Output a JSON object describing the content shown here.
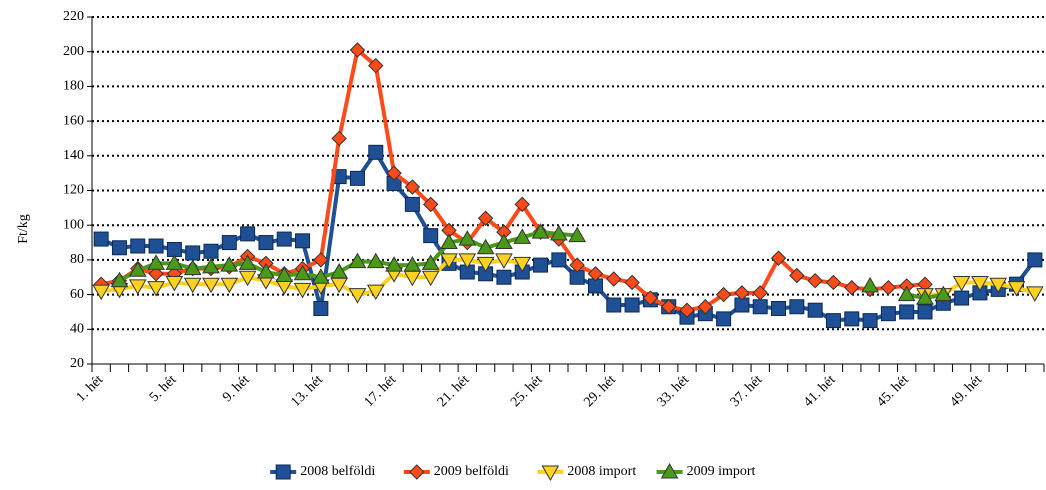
{
  "chart_data": {
    "type": "line",
    "ylabel": "Ft/kg",
    "categories": [
      "1. hét",
      null,
      null,
      null,
      "5. hét",
      null,
      null,
      null,
      "9. hét",
      null,
      null,
      null,
      "13. hét",
      null,
      null,
      null,
      "17. hét",
      null,
      null,
      null,
      "21. hét",
      null,
      null,
      null,
      "25. hét",
      null,
      null,
      null,
      "29. hét",
      null,
      null,
      null,
      "33. hét",
      null,
      null,
      null,
      "37. hét",
      null,
      null,
      null,
      "41. hét",
      null,
      null,
      null,
      "45. hét",
      null,
      null,
      null,
      "49. hét",
      null,
      null,
      null
    ],
    "ylim": [
      20,
      220
    ],
    "yticks": [
      20,
      40,
      60,
      80,
      100,
      120,
      140,
      160,
      180,
      200,
      220
    ],
    "grid": true,
    "legend": "bottom",
    "series": [
      {
        "name": "2008 belföldi",
        "color": "#1f4f94",
        "marker": "square",
        "values": [
          92,
          87,
          88,
          88,
          86,
          84,
          85,
          90,
          95,
          90,
          92,
          91,
          52,
          128,
          127,
          142,
          124,
          112,
          94,
          78,
          73,
          72,
          70,
          73,
          77,
          80,
          70,
          65,
          54,
          54,
          57,
          53,
          47,
          49,
          46,
          54,
          53,
          52,
          53,
          51,
          45,
          46,
          45,
          49,
          50,
          50,
          55,
          58,
          61,
          63,
          66,
          80
        ]
      },
      {
        "name": "2009 belföldi",
        "color": "#ff4a1a",
        "marker": "diamond",
        "values": [
          66,
          68,
          75,
          72,
          72,
          75,
          75,
          76,
          82,
          78,
          72,
          75,
          80,
          150,
          201,
          192,
          130,
          122,
          112,
          97,
          90,
          104,
          96,
          112,
          96,
          92,
          77,
          72,
          69,
          67,
          58,
          53,
          51,
          53,
          60,
          61,
          61,
          81,
          71,
          68,
          67,
          64,
          63,
          64,
          65,
          66,
          null,
          null,
          null,
          null,
          null,
          null
        ]
      },
      {
        "name": "2008 import",
        "color": "#ffd21f",
        "marker": "triangle-down",
        "values": [
          62,
          63,
          65,
          64,
          67,
          66,
          66,
          66,
          70,
          68,
          65,
          63,
          65,
          66,
          60,
          62,
          72,
          70,
          70,
          80,
          80,
          78,
          80,
          78,
          null,
          null,
          null,
          null,
          null,
          null,
          null,
          null,
          null,
          null,
          null,
          null,
          null,
          null,
          null,
          null,
          null,
          null,
          null,
          null,
          null,
          60,
          60,
          67,
          67,
          66,
          64,
          61
        ]
      },
      {
        "name": "2009 import",
        "color": "#4a9a1a",
        "marker": "triangle-up",
        "values": [
          null,
          68,
          74,
          78,
          78,
          75,
          76,
          77,
          78,
          73,
          71,
          72,
          70,
          73,
          79,
          79,
          77,
          77,
          78,
          90,
          92,
          87,
          90,
          93,
          96,
          95,
          94,
          null,
          null,
          null,
          null,
          null,
          null,
          null,
          null,
          null,
          null,
          null,
          null,
          null,
          null,
          null,
          65,
          null,
          60,
          58,
          60,
          null,
          null,
          null,
          null,
          null
        ]
      }
    ]
  }
}
